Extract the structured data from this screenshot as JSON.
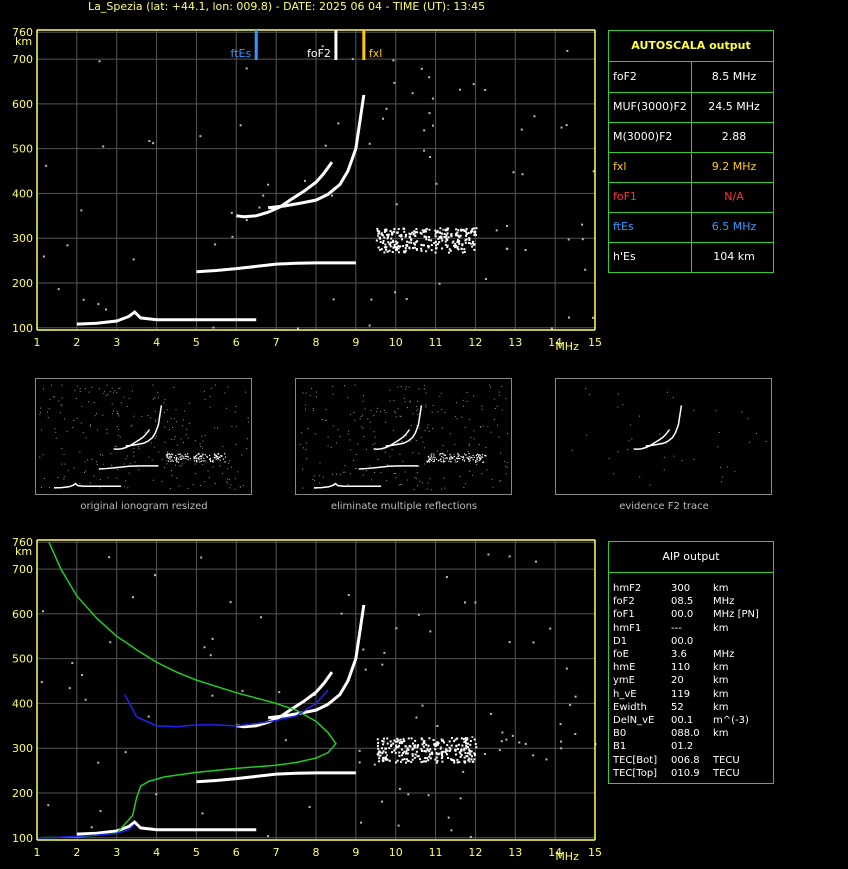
{
  "header": {
    "title": "La_Spezia (lat: +44.1, lon: 009.8) - DATE: 2025 06 04 - TIME (UT): 13:45"
  },
  "colors": {
    "axis": "#ffff66",
    "grid": "#555555",
    "trace": "#ffffff",
    "fxl": "#ffcc00",
    "ftEs": "#3399ff",
    "foF2": "#ffffff",
    "profile_green": "#22cc22",
    "profile_blue": "#2222ee",
    "box_border": "#33cc33",
    "foF1_red": "#ff3333",
    "ftEs_blue": "#3399ff",
    "fxl_yellow": "#ffcc00",
    "autoscala_title": "#ffff44"
  },
  "chart_data": [
    {
      "type": "scatter",
      "panel": "main-ionogram",
      "xlabel": "MHz",
      "ylabel": "km",
      "xlim": [
        1,
        15
      ],
      "ylim": [
        95,
        765
      ],
      "x_ticks": [
        1,
        2,
        3,
        4,
        5,
        6,
        7,
        8,
        9,
        10,
        11,
        12,
        13,
        14,
        15
      ],
      "y_ticks": [
        100,
        200,
        300,
        400,
        500,
        600,
        700,
        760
      ],
      "grid": true,
      "markers": [
        {
          "label": "ftEs",
          "x": 6.5,
          "color": "#3399ff"
        },
        {
          "label": "foF2",
          "x": 8.5,
          "color": "#ffffff"
        },
        {
          "label": "fxl",
          "x": 9.2,
          "color": "#ffcc00"
        }
      ],
      "series": [
        {
          "x": [
            6.0,
            6.2,
            6.5,
            6.8,
            7.1,
            7.4,
            7.7,
            8.0,
            8.2,
            8.4
          ],
          "y": [
            350,
            348,
            350,
            358,
            370,
            388,
            405,
            425,
            445,
            470
          ]
        },
        {
          "x": [
            6.8,
            7.2,
            7.6,
            8.0,
            8.3,
            8.6,
            8.8,
            9.0,
            9.1,
            9.2
          ],
          "y": [
            368,
            372,
            378,
            385,
            398,
            420,
            450,
            500,
            560,
            620
          ]
        },
        {
          "x": [
            2.0,
            2.5,
            3.0,
            3.3,
            3.45,
            3.6,
            4.0,
            5.0,
            6.0,
            6.5
          ],
          "y": [
            108,
            110,
            115,
            125,
            135,
            122,
            118,
            118,
            118,
            118
          ]
        },
        {
          "x": [
            5.0,
            5.5,
            6.0,
            6.5,
            7.0,
            7.5,
            8.0,
            8.5,
            9.0
          ],
          "y": [
            225,
            228,
            232,
            237,
            242,
            244,
            245,
            245,
            245
          ]
        }
      ]
    },
    {
      "type": "line",
      "panel": "profile-ionogram",
      "xlabel": "MHz",
      "ylabel": "km",
      "xlim": [
        1,
        15
      ],
      "ylim": [
        95,
        765
      ],
      "x_ticks": [
        1,
        2,
        3,
        4,
        5,
        6,
        7,
        8,
        9,
        10,
        11,
        12,
        13,
        14,
        15
      ],
      "y_ticks": [
        100,
        200,
        300,
        400,
        500,
        600,
        700,
        760
      ],
      "grid": true,
      "series": [
        {
          "color": "green",
          "x": [
            1.3,
            1.6,
            2.0,
            2.5,
            3.0,
            3.5,
            4.0,
            4.5,
            5.0,
            5.5,
            6.0,
            6.5,
            7.0,
            7.5,
            8.0,
            8.3,
            8.5,
            8.3,
            8.0,
            7.5,
            7.0,
            6.0,
            5.0,
            4.2,
            3.8,
            3.6,
            3.5,
            3.4,
            3.0,
            2.0,
            1.0
          ],
          "y": [
            760,
            700,
            640,
            590,
            550,
            520,
            492,
            470,
            452,
            438,
            424,
            412,
            400,
            385,
            360,
            335,
            310,
            290,
            278,
            268,
            262,
            255,
            246,
            236,
            226,
            215,
            190,
            150,
            110,
            102,
            100
          ]
        },
        {
          "color": "blue",
          "x": [
            3.2,
            3.5,
            4.0,
            4.5,
            5.0,
            5.5,
            6.0,
            6.5,
            7.0,
            7.5,
            8.0,
            8.3
          ],
          "y": [
            420,
            370,
            350,
            348,
            352,
            352,
            350,
            355,
            362,
            372,
            400,
            430
          ]
        },
        {
          "color": "blue",
          "x": [
            1.0,
            1.5,
            2.0,
            2.5,
            3.0,
            3.3,
            3.45
          ],
          "y": [
            100,
            101,
            103,
            106,
            110,
            118,
            130
          ]
        }
      ]
    }
  ],
  "autoscala": {
    "title": "AUTOSCALA output",
    "rows": [
      {
        "key": "foF2",
        "value": "8.5 MHz",
        "kcolor": "#ffffff",
        "vcolor": "#ffffff"
      },
      {
        "key": "MUF(3000)F2",
        "value": "24.5 MHz",
        "kcolor": "#ffffff",
        "vcolor": "#ffffff"
      },
      {
        "key": "M(3000)F2",
        "value": "2.88",
        "kcolor": "#ffffff",
        "vcolor": "#ffffff"
      },
      {
        "key": "fxl",
        "value": "9.2 MHz",
        "kcolor": "#ffcc00",
        "vcolor": "#ffcc00"
      },
      {
        "key": "foF1",
        "value": "N/A",
        "kcolor": "#ff3333",
        "vcolor": "#ff3333"
      },
      {
        "key": "ftEs",
        "value": "6.5 MHz",
        "kcolor": "#3399ff",
        "vcolor": "#3399ff"
      },
      {
        "key": "h'Es",
        "value": "104     km",
        "kcolor": "#ffffff",
        "vcolor": "#ffffff"
      }
    ]
  },
  "thumbnails": [
    {
      "caption": "original ionogram resized"
    },
    {
      "caption": "eliminate multiple reflections"
    },
    {
      "caption": "evidence F2 trace"
    }
  ],
  "aip": {
    "title": "AIP output",
    "rows": [
      {
        "k": "hmF2",
        "v": "300",
        "u": "km"
      },
      {
        "k": "foF2",
        "v": "08.5",
        "u": "MHz"
      },
      {
        "k": "foF1",
        "v": "00.0",
        "u": "MHz   [PN]"
      },
      {
        "k": "hmF1",
        "v": "---",
        "u": "km"
      },
      {
        "k": "D1",
        "v": "00.0",
        "u": ""
      },
      {
        "k": "foE",
        "v": "3.6",
        "u": "MHz"
      },
      {
        "k": "hmE",
        "v": "110",
        "u": "km"
      },
      {
        "k": "ymE",
        "v": "20",
        "u": "km"
      },
      {
        "k": "h_vE",
        "v": "119",
        "u": "km"
      },
      {
        "k": "Ewidth",
        "v": "52",
        "u": "km"
      },
      {
        "k": "DelN_vE",
        "v": "00.1",
        "u": "m^(-3)"
      },
      {
        "k": "B0",
        "v": "088.0",
        "u": "km"
      },
      {
        "k": "B1",
        "v": "01.2",
        "u": ""
      },
      {
        "k": "TEC[Bot]",
        "v": "006.8",
        "u": "TECU"
      },
      {
        "k": "TEC[Top]",
        "v": "010.9",
        "u": "TECU"
      }
    ]
  }
}
